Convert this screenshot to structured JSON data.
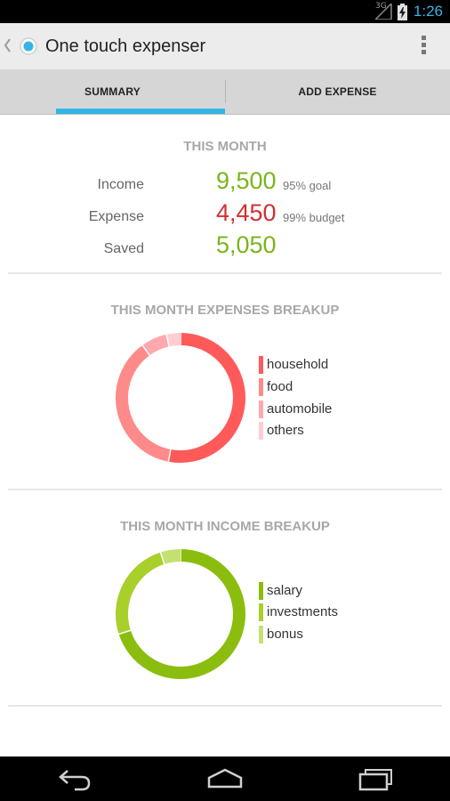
{
  "status_bar": {
    "time": "1:26",
    "network": "3G"
  },
  "app": {
    "title": "One touch expenser"
  },
  "tabs": [
    {
      "label": "SUMMARY",
      "selected": true
    },
    {
      "label": "ADD EXPENSE",
      "selected": false
    }
  ],
  "this_month": {
    "title": "THIS MONTH",
    "rows": [
      {
        "label": "Income",
        "value": "9,500",
        "note": "95% goal"
      },
      {
        "label": "Expense",
        "value": "4,450",
        "note": "99% budget"
      },
      {
        "label": "Saved",
        "value": "5,050",
        "note": ""
      }
    ]
  },
  "expenses_breakup": {
    "title": "THIS MONTH EXPENSES BREAKUP",
    "legend": [
      {
        "label": "household",
        "color": "#ff5a5a"
      },
      {
        "label": "food",
        "color": "#ff8a8a"
      },
      {
        "label": "automobile",
        "color": "#ffa8ad"
      },
      {
        "label": "others",
        "color": "#ffcdd2"
      }
    ]
  },
  "income_breakup": {
    "title": "THIS MONTH INCOME BREAKUP",
    "legend": [
      {
        "label": "salary",
        "color": "#8bbd0e"
      },
      {
        "label": "investments",
        "color": "#a8cf2a"
      },
      {
        "label": "bonus",
        "color": "#c4e070"
      }
    ]
  },
  "chart_data": [
    {
      "type": "pie",
      "title": "THIS MONTH EXPENSES BREAKUP",
      "categories": [
        "household",
        "food",
        "automobile",
        "others"
      ],
      "values": [
        53,
        37,
        6.5,
        3.5
      ]
    },
    {
      "type": "pie",
      "title": "THIS MONTH INCOME BREAKUP",
      "categories": [
        "salary",
        "investments",
        "bonus"
      ],
      "values": [
        70,
        25,
        5
      ]
    }
  ]
}
